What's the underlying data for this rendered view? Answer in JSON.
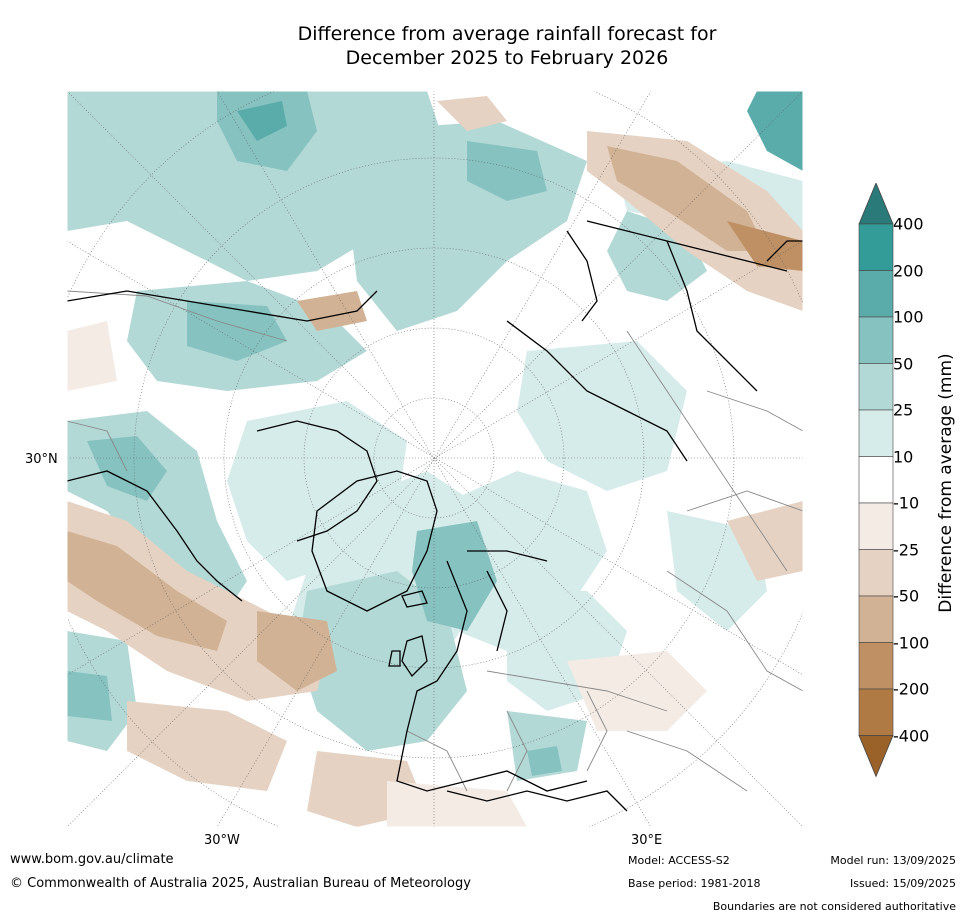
{
  "title_line1": "Difference from average rainfall forecast for",
  "title_line2": "December 2025 to February 2026",
  "map": {
    "projection": "polar-stereographic-north",
    "axis_labels": {
      "lat_30n": "30°N",
      "lon_30w": "30°W",
      "lon_30e": "30°E"
    },
    "features": [
      "north-america-coastline",
      "greenland",
      "europe-coastline",
      "asia-coastline",
      "country-borders",
      "graticule"
    ]
  },
  "colorbar": {
    "title": "Difference from average (mm)",
    "levels": [
      "400",
      "200",
      "100",
      "50",
      "25",
      "10",
      "-10",
      "-25",
      "-50",
      "-100",
      "-200",
      "-400"
    ],
    "colors": [
      "#2a7a7a",
      "#339c99",
      "#5aacaa",
      "#86c2c0",
      "#b3d9d7",
      "#d6ecea",
      "#ffffff",
      "#f4ebe5",
      "#e6d2c2",
      "#d2b294",
      "#be9063",
      "#b07a45",
      "#9a6128"
    ]
  },
  "footer": {
    "website": "www.bom.gov.au/climate",
    "copyright": "© Commonwealth of Australia 2025, Australian Bureau of Meteorology",
    "model": "Model: ACCESS-S2",
    "base_period": "Base period: 1981-2018",
    "model_run": "Model run: 13/09/2025",
    "issued": "Issued: 15/09/2025",
    "disclaimer": "Boundaries are not considered authoritative"
  }
}
